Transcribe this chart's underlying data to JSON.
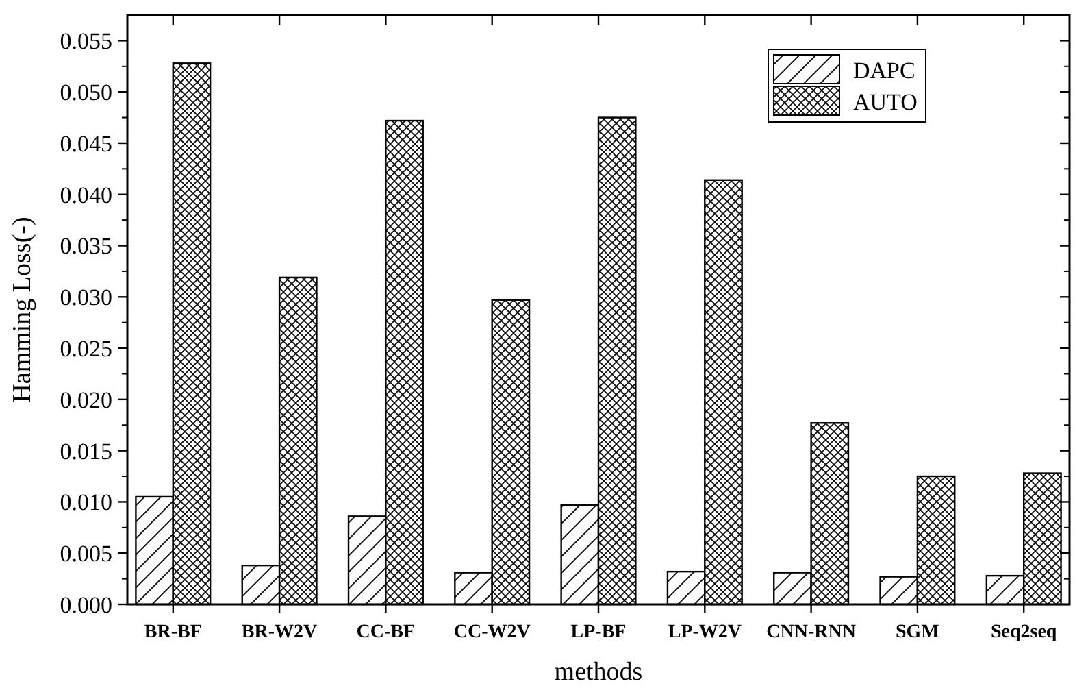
{
  "chart_data": {
    "type": "bar",
    "xlabel": "methods",
    "ylabel": "Hamming Loss(-)",
    "categories": [
      "BR-BF",
      "BR-W2V",
      "CC-BF",
      "CC-W2V",
      "LP-BF",
      "LP-W2V",
      "CNN-RNN",
      "SGM",
      "Seq2seq"
    ],
    "series": [
      {
        "name": "DAPC",
        "color": "#000000",
        "values": [
          0.0105,
          0.0038,
          0.0086,
          0.0031,
          0.0097,
          0.0032,
          0.0031,
          0.0027,
          0.0028
        ]
      },
      {
        "name": "AUTO",
        "color": "#000000",
        "values": [
          0.0528,
          0.0319,
          0.0472,
          0.0297,
          0.0475,
          0.0414,
          0.0177,
          0.0125,
          0.0128
        ]
      }
    ],
    "ylim": [
      0,
      0.0575
    ],
    "yticks": [
      {
        "value": 0,
        "label": "0.000"
      },
      {
        "value": 0.005,
        "label": "0.005"
      },
      {
        "value": 0.01,
        "label": "0.010"
      },
      {
        "value": 0.015,
        "label": "0.015"
      },
      {
        "value": 0.02,
        "label": "0.020"
      },
      {
        "value": 0.025,
        "label": "0.025"
      },
      {
        "value": 0.03,
        "label": "0.030"
      },
      {
        "value": 0.035,
        "label": "0.035"
      },
      {
        "value": 0.04,
        "label": "0.040"
      },
      {
        "value": 0.045,
        "label": "0.045"
      },
      {
        "value": 0.05,
        "label": "0.050"
      },
      {
        "value": 0.055,
        "label": "0.055"
      }
    ],
    "grid": false,
    "legend": "top right"
  }
}
